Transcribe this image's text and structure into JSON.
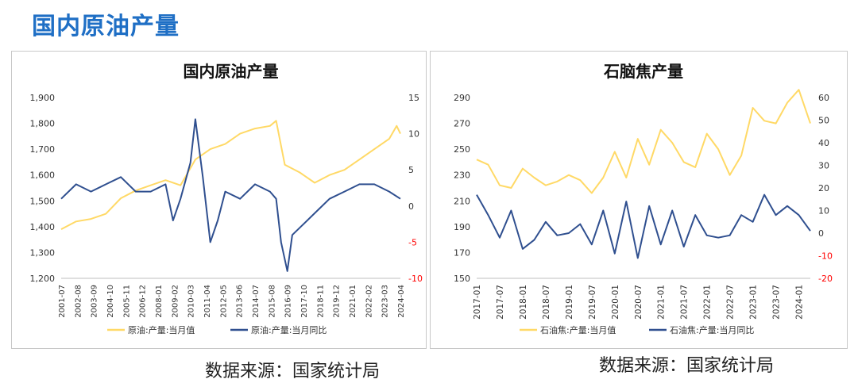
{
  "page": {
    "title": "国内原油产量",
    "source_left": "数据来源：国家统计局",
    "source_right": "数据来源：国家统计局"
  },
  "colors": {
    "yellow": "#ffd966",
    "blue": "#2f4f8f",
    "negative_tick": "#ff0000",
    "title_blue": "#1f6fc5"
  },
  "chart_data": [
    {
      "type": "line",
      "title": "国内原油产量",
      "grid": false,
      "legend_position": "bottom",
      "x_tick_labels": [
        "2001-07",
        "2002-08",
        "2003-09",
        "2004-10",
        "2005-11",
        "2006-12",
        "2008-01",
        "2009-02",
        "2010-03",
        "2011-04",
        "2012-05",
        "2013-06",
        "2014-07",
        "2015-08",
        "2016-09",
        "2017-10",
        "2018-11",
        "2019-12",
        "2021-01",
        "2022-02",
        "2023-03",
        "2024-04"
      ],
      "x_range": [
        "2001-07",
        "2024-04"
      ],
      "left_axis": {
        "min": 1200,
        "max": 1900,
        "ticks": [
          "1,200",
          "1,300",
          "1,400",
          "1,500",
          "1,600",
          "1,700",
          "1,800",
          "1,900"
        ]
      },
      "right_axis": {
        "min": -10,
        "max": 15,
        "ticks": [
          "-10",
          "-5",
          "0",
          "5",
          "10",
          "15"
        ]
      },
      "series": [
        {
          "name": "原油:产量:当月值",
          "axis": "left",
          "color": "#ffd966",
          "x": [
            "2001-07",
            "2002-07",
            "2003-07",
            "2004-07",
            "2005-07",
            "2006-07",
            "2007-07",
            "2008-07",
            "2009-07",
            "2010-07",
            "2011-07",
            "2012-07",
            "2013-07",
            "2014-07",
            "2015-07",
            "2015-12",
            "2016-07",
            "2017-07",
            "2018-07",
            "2019-07",
            "2020-07",
            "2021-07",
            "2022-07",
            "2023-07",
            "2024-01",
            "2024-04"
          ],
          "y": [
            1390,
            1420,
            1430,
            1450,
            1510,
            1540,
            1560,
            1580,
            1560,
            1660,
            1700,
            1720,
            1760,
            1780,
            1790,
            1810,
            1640,
            1610,
            1570,
            1600,
            1620,
            1660,
            1700,
            1740,
            1790,
            1760
          ]
        },
        {
          "name": "原油:产量:当月同比",
          "axis": "right",
          "color": "#2f4f8f",
          "x": [
            "2001-07",
            "2002-07",
            "2003-07",
            "2004-07",
            "2005-07",
            "2006-07",
            "2007-07",
            "2008-07",
            "2009-01",
            "2009-07",
            "2010-03",
            "2010-07",
            "2011-01",
            "2011-07",
            "2012-01",
            "2012-07",
            "2013-07",
            "2014-07",
            "2015-07",
            "2015-12",
            "2016-04",
            "2016-09",
            "2017-01",
            "2017-07",
            "2018-07",
            "2019-07",
            "2020-07",
            "2021-07",
            "2022-07",
            "2023-07",
            "2024-04"
          ],
          "y": [
            1,
            3,
            2,
            3,
            4,
            2,
            2,
            3,
            -2,
            1,
            6,
            12,
            4,
            -5,
            -2,
            2,
            1,
            3,
            2,
            1,
            -5,
            -9,
            -4,
            -3,
            -1,
            1,
            2,
            3,
            3,
            2,
            1
          ]
        }
      ]
    },
    {
      "type": "line",
      "title": "石脑焦产量",
      "grid": false,
      "legend_position": "bottom",
      "x_tick_labels": [
        "2017-01",
        "2017-07",
        "2018-01",
        "2018-07",
        "2019-01",
        "2019-07",
        "2020-01",
        "2020-07",
        "2021-01",
        "2021-07",
        "2022-01",
        "2022-07",
        "2023-01",
        "2023-07",
        "2024-01"
      ],
      "x_range": [
        "2017-01",
        "2024-04"
      ],
      "left_axis": {
        "min": 150,
        "max": 290,
        "ticks": [
          "150",
          "170",
          "190",
          "210",
          "230",
          "250",
          "270",
          "290"
        ]
      },
      "right_axis": {
        "min": -20,
        "max": 60,
        "ticks": [
          "-20",
          "-10",
          "0",
          "10",
          "20",
          "30",
          "40",
          "50",
          "60"
        ]
      },
      "series": [
        {
          "name": "石油焦:产量:当月值",
          "axis": "left",
          "color": "#ffd966",
          "x": [
            "2017-01",
            "2017-04",
            "2017-07",
            "2017-10",
            "2018-01",
            "2018-04",
            "2018-07",
            "2018-10",
            "2019-01",
            "2019-04",
            "2019-07",
            "2019-10",
            "2020-01",
            "2020-04",
            "2020-07",
            "2020-10",
            "2021-01",
            "2021-04",
            "2021-07",
            "2021-10",
            "2022-01",
            "2022-04",
            "2022-07",
            "2022-10",
            "2023-01",
            "2023-04",
            "2023-07",
            "2023-10",
            "2024-01",
            "2024-04"
          ],
          "y": [
            242,
            238,
            222,
            220,
            235,
            228,
            222,
            225,
            230,
            226,
            216,
            228,
            248,
            228,
            258,
            238,
            265,
            255,
            240,
            236,
            262,
            250,
            230,
            245,
            282,
            272,
            270,
            286,
            296,
            270
          ]
        },
        {
          "name": "石油焦:产量:当月同比",
          "axis": "right",
          "color": "#2f4f8f",
          "x": [
            "2017-01",
            "2017-04",
            "2017-07",
            "2017-10",
            "2018-01",
            "2018-04",
            "2018-07",
            "2018-10",
            "2019-01",
            "2019-04",
            "2019-07",
            "2019-10",
            "2020-01",
            "2020-04",
            "2020-07",
            "2020-10",
            "2021-01",
            "2021-04",
            "2021-07",
            "2021-10",
            "2022-01",
            "2022-04",
            "2022-07",
            "2022-10",
            "2023-01",
            "2023-04",
            "2023-07",
            "2023-10",
            "2024-01",
            "2024-04"
          ],
          "y": [
            17,
            8,
            -2,
            10,
            -7,
            -3,
            5,
            -1,
            0,
            4,
            -5,
            10,
            -9,
            14,
            -11,
            12,
            -5,
            10,
            -6,
            8,
            -1,
            -2,
            -1,
            8,
            5,
            17,
            8,
            12,
            8,
            1
          ]
        }
      ]
    }
  ]
}
